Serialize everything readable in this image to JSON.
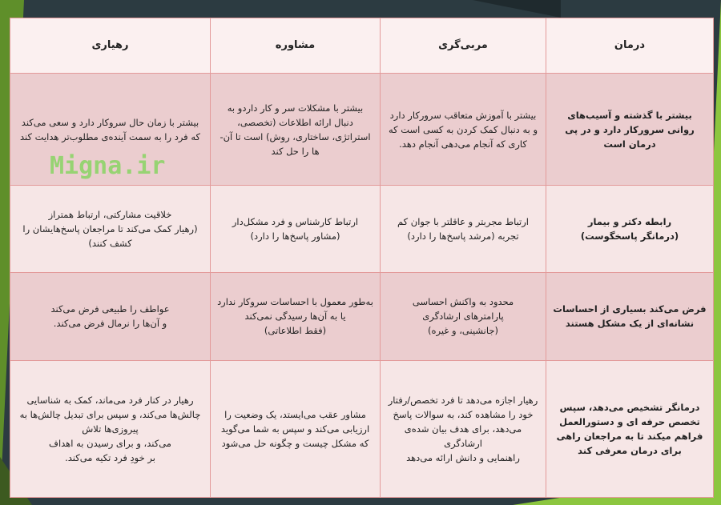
{
  "watermark": "Migna.ir",
  "headers": [
    "درمان",
    "مربی‌گری",
    "مشاوره",
    "رهیاری"
  ],
  "rows": [
    [
      "بیشتر با گذشته و آسیب‌های روانی سرورکار دارد و در پی درمان است",
      "بیشتر با آموزش متعاقب سرورکار دارد و به دنبال کمک کردن به کسی است که کاری که آنجام می‌دهی آنجام دهد.",
      "بیشتر با مشکلات سر و کار داردو به دنبال ارائه اطلاعات (تخصصی، استراتژی، ساختاری، روش) است تا آن-ها را حل کند",
      "بیشتر با زمان حال سروکار دارد و سعی می‌کند که فرد را به سمت آینده‌ی مطلوب‌تر هدایت کند"
    ],
    [
      "رابطه دکتر و بیمار\n(درمانگر پاسخگوست)",
      "ارتباط مجربتر و عاقلتر با جوان کم تجربه (مرشد پاسخ‌ها را دارد)",
      "ارتباط کارشناس و فرد مشکل‌دار\n(مشاور پاسخ‌ها را دارد)",
      "خلاقیت مشارکتی، ارتباط همتراز\n(رهیار کمک می‌کند تا مراجعان پاسخ‌هایشان را کشف کنند)"
    ],
    [
      "فرض می‌کند بسیاری از احساسات نشانه‌ای از یک مشکل هستند",
      "محدود به واکنش احساسی\nپارامترهای ارشادگری\n(جانشینی، و غیره)",
      "به‌طور معمول با احساسات سروکار ندارد یا به آن‌ها رسیدگی نمی‌کند\n(فقط اطلاعاتی)",
      "عواطف را طبیعی فرض می‌کند\nو آن‌ها را نرمال فرض می‌کند."
    ],
    [
      "درمانگر تشخیص می‌دهد، سپس تخصص حرفه ای و دستورالعمل فراهم میکند تا به مراجعان راهی برای درمان معرفی کند",
      "رهیار اجازه می‌دهد تا فرد تخصص/رفتار خود را مشاهده کند، به سوالات پاسخ می‌دهد، برای هدف بیان شده‌ی ارشادگری\nراهنمایی و دانش ارائه می‌دهد",
      "مشاور عقب می‌ایستد، یک وضعیت را ارزیابی می‌کند و سپس به شما می‌گوید که مشکل چیست و چگونه حل می‌شود",
      "رهیار در کنار فرد می‌ماند، کمک به شناسایی چالش‌ها می‌کند، و سپس برای تبدیل چالش‌ها به پیروزی‌ها تلاش\nمی‌کند، و برای رسیدن به اهداف\nبر خودِ فرد تکیه می‌کند."
    ]
  ]
}
